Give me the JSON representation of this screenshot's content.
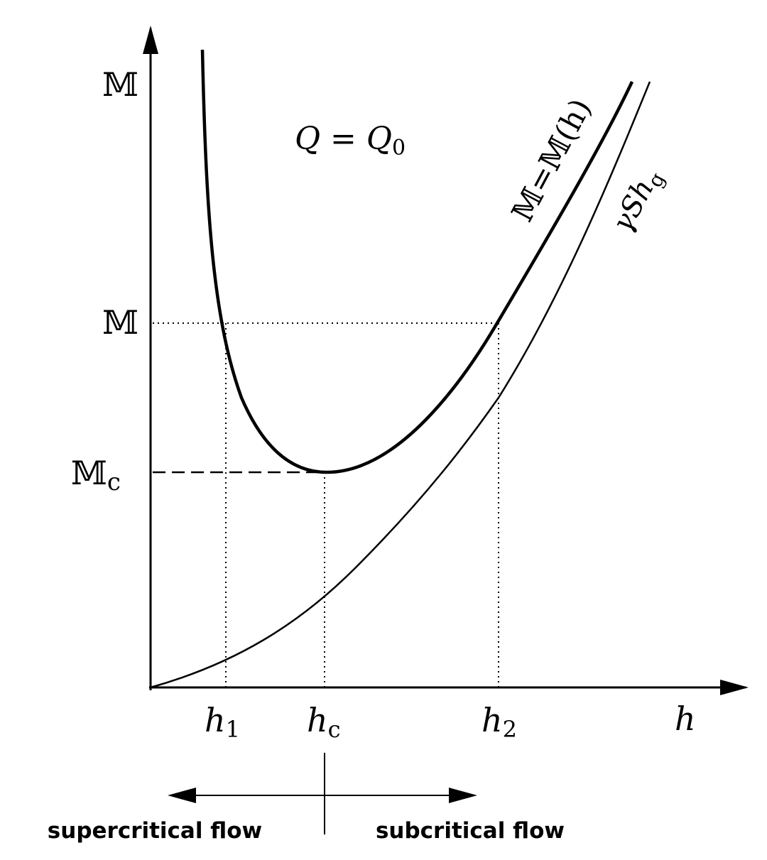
{
  "y_labels": [
    {
      "text": "𝕄"
    },
    {
      "text": "𝕄"
    },
    {
      "text": "𝕄",
      "sub": "c"
    }
  ],
  "x_labels": [
    {
      "text": "h",
      "sub": "1"
    },
    {
      "text": "h",
      "sub": "c"
    },
    {
      "text": "h",
      "sub": "2"
    },
    {
      "text": "h"
    }
  ],
  "annotations": {
    "flow_condition": {
      "text": "Q = Q",
      "sub": "0"
    },
    "momentum_curve": "𝕄=𝕄(h)",
    "gravity_curve": {
      "text": "γSh",
      "sub": "g"
    }
  },
  "flow_regimes": [
    "supercritical flow",
    "subcritical flow"
  ]
}
